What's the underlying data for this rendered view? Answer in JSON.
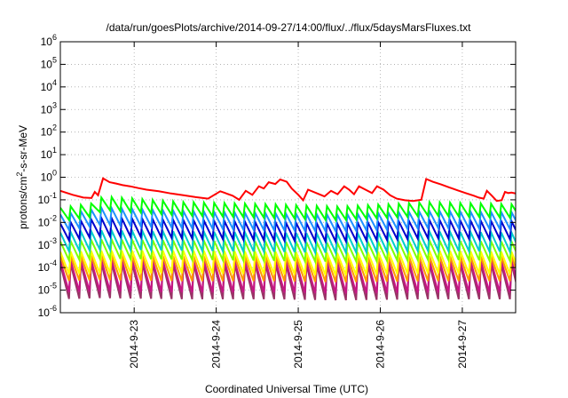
{
  "chart_data": {
    "type": "line",
    "title": "/data/run/goesPlots/archive/2014-09-27/14:00/flux/../flux/5daysMarsFluxes.txt",
    "xlabel": "Coordinated Universal Time (UTC)",
    "ylabel": {
      "pre": "protons/cm",
      "sup": "2",
      "post": "-s-sr-MeV"
    },
    "yscale": "log",
    "ylim_exp": [
      -6,
      6
    ],
    "ytick_exps": [
      -6,
      -5,
      -4,
      -3,
      -2,
      -1,
      0,
      1,
      2,
      3,
      4,
      5,
      6
    ],
    "ytick_base": "10",
    "xlim_days": [
      22.1,
      27.65
    ],
    "xticks": [
      {
        "day": 23,
        "label": "2014-9-23"
      },
      {
        "day": 24,
        "label": "2014-9-24"
      },
      {
        "day": 25,
        "label": "2014-9-25"
      },
      {
        "day": 26,
        "label": "2014-9-26"
      },
      {
        "day": 27,
        "label": "2014-9-27"
      }
    ],
    "grid": true,
    "series": [
      {
        "color": "#ff0000",
        "log10_values": [
          [
            22.1,
            -0.6
          ],
          [
            22.25,
            -0.78
          ],
          [
            22.38,
            -0.9
          ],
          [
            22.48,
            -0.92
          ],
          [
            22.52,
            -0.65
          ],
          [
            22.56,
            -0.8
          ],
          [
            22.62,
            -0.05
          ],
          [
            22.7,
            -0.22
          ],
          [
            22.78,
            -0.28
          ],
          [
            22.86,
            -0.35
          ],
          [
            22.95,
            -0.4
          ],
          [
            23.05,
            -0.48
          ],
          [
            23.15,
            -0.55
          ],
          [
            23.3,
            -0.62
          ],
          [
            23.45,
            -0.72
          ],
          [
            23.6,
            -0.8
          ],
          [
            23.75,
            -0.88
          ],
          [
            23.9,
            -0.95
          ],
          [
            24.05,
            -0.62
          ],
          [
            24.2,
            -0.82
          ],
          [
            24.28,
            -1.0
          ],
          [
            24.36,
            -0.6
          ],
          [
            24.44,
            -0.78
          ],
          [
            24.52,
            -0.4
          ],
          [
            24.58,
            -0.5
          ],
          [
            24.64,
            -0.22
          ],
          [
            24.72,
            -0.3
          ],
          [
            24.78,
            -0.1
          ],
          [
            24.86,
            -0.2
          ],
          [
            24.92,
            -0.5
          ],
          [
            25.0,
            -0.78
          ],
          [
            25.06,
            -1.02
          ],
          [
            25.12,
            -0.55
          ],
          [
            25.22,
            -0.7
          ],
          [
            25.32,
            -0.85
          ],
          [
            25.4,
            -0.6
          ],
          [
            25.48,
            -0.75
          ],
          [
            25.56,
            -0.4
          ],
          [
            25.62,
            -0.55
          ],
          [
            25.68,
            -0.75
          ],
          [
            25.74,
            -0.4
          ],
          [
            25.82,
            -0.55
          ],
          [
            25.9,
            -0.7
          ],
          [
            25.96,
            -0.4
          ],
          [
            26.04,
            -0.55
          ],
          [
            26.12,
            -0.8
          ],
          [
            26.2,
            -0.95
          ],
          [
            26.3,
            -1.02
          ],
          [
            26.4,
            -1.05
          ],
          [
            26.5,
            -1.0
          ],
          [
            26.56,
            -0.08
          ],
          [
            26.64,
            -0.2
          ],
          [
            26.74,
            -0.32
          ],
          [
            26.84,
            -0.45
          ],
          [
            26.94,
            -0.58
          ],
          [
            27.04,
            -0.7
          ],
          [
            27.14,
            -0.82
          ],
          [
            27.2,
            -0.9
          ],
          [
            27.26,
            -0.95
          ],
          [
            27.3,
            -0.6
          ],
          [
            27.36,
            -0.82
          ],
          [
            27.42,
            -1.05
          ],
          [
            27.48,
            -1.02
          ],
          [
            27.52,
            -0.65
          ],
          [
            27.56,
            -0.7
          ],
          [
            27.6,
            -0.68
          ],
          [
            27.65,
            -0.72
          ]
        ]
      }
    ],
    "oscillating_series": [
      {
        "color": "#00ff00",
        "peak_log10": -1.15,
        "trough_log10": -1.75,
        "trend_log10": [
          [
            22.1,
            -0.2
          ],
          [
            22.5,
            0.0
          ],
          [
            22.62,
            0.3
          ],
          [
            23.6,
            0.05
          ],
          [
            24.7,
            -0.05
          ],
          [
            25.5,
            -0.15
          ],
          [
            26.6,
            0.05
          ],
          [
            27.65,
            -0.05
          ]
        ]
      },
      {
        "color": "#1e90ff",
        "peak_log10": -1.55,
        "trough_log10": -2.3,
        "trend_log10": [
          [
            22.1,
            -0.1
          ],
          [
            22.6,
            0.2
          ],
          [
            23.6,
            0.05
          ],
          [
            24.7,
            -0.05
          ],
          [
            25.5,
            -0.1
          ],
          [
            26.6,
            0.05
          ],
          [
            27.65,
            0.0
          ]
        ]
      },
      {
        "color": "#0000cd",
        "peak_log10": -1.95,
        "trough_log10": -2.75,
        "trend_log10": [
          [
            22.1,
            -0.1
          ],
          [
            22.6,
            0.15
          ],
          [
            23.6,
            0.05
          ],
          [
            24.7,
            -0.05
          ],
          [
            25.5,
            -0.1
          ],
          [
            26.6,
            0.05
          ],
          [
            27.65,
            0.0
          ]
        ]
      },
      {
        "color": "#00cccc",
        "peak_log10": -2.45,
        "trough_log10": -3.3,
        "trend_log10": [
          [
            22.1,
            0.0
          ],
          [
            22.6,
            0.1
          ],
          [
            23.6,
            0.05
          ],
          [
            24.7,
            0.0
          ],
          [
            25.5,
            -0.05
          ],
          [
            26.6,
            0.05
          ],
          [
            27.65,
            0.0
          ]
        ]
      },
      {
        "color": "#7fff00",
        "peak_log10": -2.85,
        "trough_log10": -3.7,
        "trend_log10": [
          [
            22.1,
            0.0
          ],
          [
            22.6,
            0.1
          ],
          [
            23.6,
            0.05
          ],
          [
            24.7,
            0.0
          ],
          [
            25.5,
            -0.05
          ],
          [
            26.6,
            0.05
          ],
          [
            27.65,
            0.0
          ]
        ]
      },
      {
        "color": "#ffff00",
        "peak_log10": -3.3,
        "trough_log10": -4.3,
        "trend_log10": [
          [
            22.1,
            0.0
          ],
          [
            22.6,
            0.05
          ],
          [
            23.6,
            0.05
          ],
          [
            24.7,
            0.0
          ],
          [
            25.5,
            -0.05
          ],
          [
            26.6,
            0.05
          ],
          [
            27.65,
            0.0
          ]
        ]
      },
      {
        "color": "#ff9900",
        "peak_log10": -3.5,
        "trough_log10": -4.6,
        "trend_log10": [
          [
            22.1,
            0.0
          ],
          [
            22.6,
            0.05
          ],
          [
            23.6,
            0.0
          ],
          [
            24.7,
            0.0
          ],
          [
            25.5,
            -0.05
          ],
          [
            26.6,
            0.0
          ],
          [
            27.65,
            0.0
          ]
        ]
      },
      {
        "color": "#c71585",
        "peak_log10": -3.7,
        "trough_log10": -5.1,
        "trend_log10": [
          [
            22.1,
            0.0
          ],
          [
            22.6,
            0.05
          ],
          [
            23.6,
            0.0
          ],
          [
            24.7,
            0.0
          ],
          [
            25.5,
            -0.05
          ],
          [
            26.6,
            0.0
          ],
          [
            27.65,
            0.0
          ]
        ]
      },
      {
        "color": "#993366",
        "peak_log10": -3.85,
        "trough_log10": -5.4,
        "trend_log10": [
          [
            22.1,
            0.0
          ],
          [
            22.6,
            0.05
          ],
          [
            23.6,
            0.0
          ],
          [
            24.7,
            0.0
          ],
          [
            25.5,
            -0.05
          ],
          [
            26.6,
            0.0
          ],
          [
            27.65,
            0.0
          ]
        ]
      }
    ],
    "oscillation_period_days": 0.125
  }
}
